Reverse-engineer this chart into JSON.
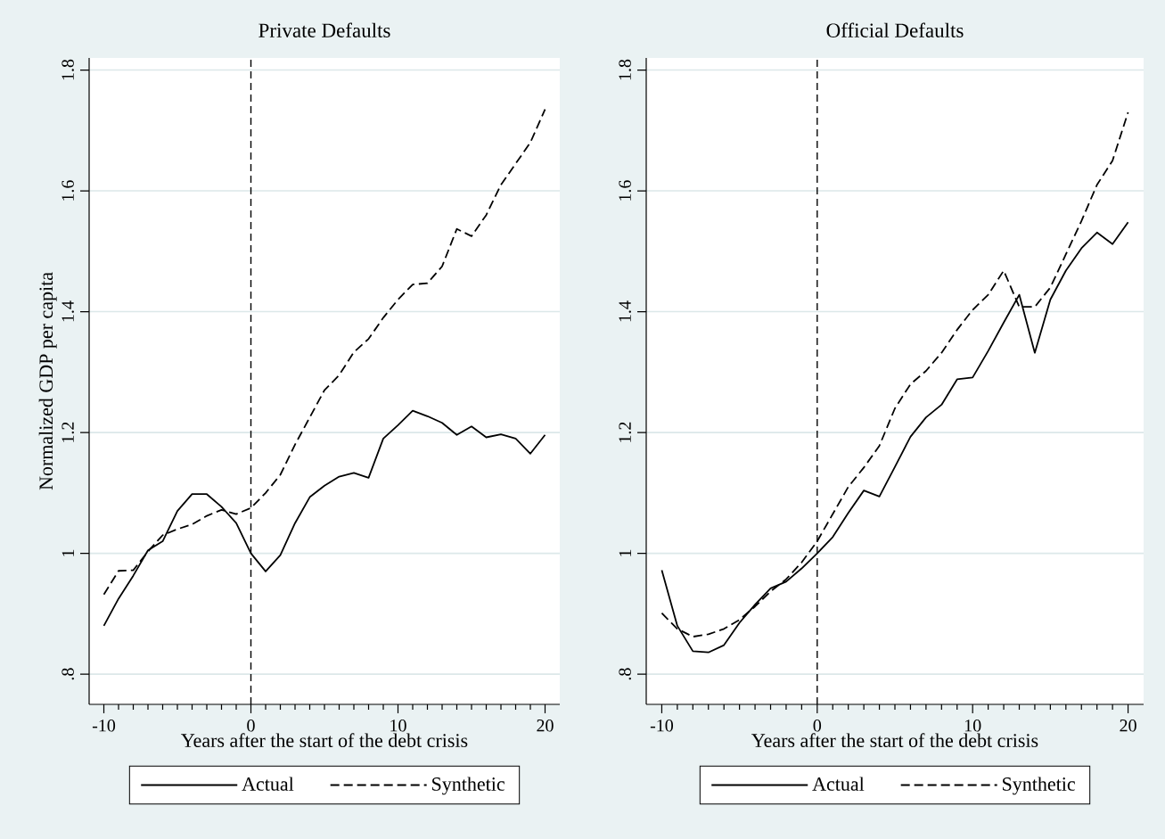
{
  "chart_data": [
    {
      "type": "line",
      "title": "Private Defaults",
      "xlabel": "Years after the start of the debt crisis",
      "ylabel": "Normalized GDP per capita",
      "x": [
        -10,
        -9,
        -8,
        -7,
        -6,
        -5,
        -4,
        -3,
        -2,
        -1,
        0,
        1,
        2,
        3,
        4,
        5,
        6,
        7,
        8,
        9,
        10,
        11,
        12,
        13,
        14,
        15,
        16,
        17,
        18,
        19,
        20
      ],
      "series": [
        {
          "name": "Actual",
          "color": "#000000",
          "line_style": "solid",
          "values": [
            0.88,
            0.925,
            0.963,
            1.005,
            1.02,
            1.07,
            1.098,
            1.098,
            1.077,
            1.05,
            1.0,
            0.97,
            0.997,
            1.05,
            1.093,
            1.112,
            1.127,
            1.133,
            1.125,
            1.19,
            1.212,
            1.236,
            1.227,
            1.216,
            1.196,
            1.21,
            1.192,
            1.197,
            1.19,
            1.165,
            1.196
          ]
        },
        {
          "name": "Synthetic",
          "color": "#000000",
          "line_style": "dashed",
          "values": [
            0.932,
            0.971,
            0.972,
            1.003,
            1.03,
            1.04,
            1.048,
            1.062,
            1.072,
            1.065,
            1.075,
            1.1,
            1.13,
            1.18,
            1.225,
            1.27,
            1.295,
            1.333,
            1.355,
            1.39,
            1.42,
            1.445,
            1.447,
            1.475,
            1.537,
            1.525,
            1.56,
            1.61,
            1.645,
            1.68,
            1.735
          ]
        }
      ],
      "xlim": [
        -11,
        21
      ],
      "ylim": [
        0.75,
        1.82
      ],
      "xticks": [
        -10,
        0,
        10,
        20
      ],
      "yticks": [
        {
          "value": 0.8,
          "label": ".8"
        },
        1,
        1.2,
        1.4,
        1.6,
        1.8
      ],
      "ref_lines": [
        {
          "axis": "x",
          "value": 0,
          "color": "#000000",
          "line_style": "dashed"
        }
      ],
      "grid": "y",
      "legend": "bottom",
      "marker": "none"
    },
    {
      "type": "line",
      "title": "Official Defaults",
      "xlabel": "Years after the start of the debt crisis",
      "x": [
        -10,
        -9,
        -8,
        -7,
        -6,
        -5,
        -4,
        -3,
        -2,
        -1,
        0,
        1,
        2,
        3,
        4,
        5,
        6,
        7,
        8,
        9,
        10,
        11,
        12,
        13,
        14,
        15,
        16,
        17,
        18,
        19,
        20
      ],
      "series": [
        {
          "name": "Actual",
          "color": "#000000",
          "line_style": "solid",
          "values": [
            0.972,
            0.88,
            0.838,
            0.836,
            0.848,
            0.885,
            0.915,
            0.942,
            0.953,
            0.975,
            1.0,
            1.027,
            1.067,
            1.104,
            1.094,
            1.143,
            1.193,
            1.225,
            1.246,
            1.288,
            1.291,
            1.335,
            1.382,
            1.428,
            1.332,
            1.42,
            1.468,
            1.505,
            1.531,
            1.512,
            1.548
          ]
        },
        {
          "name": "Synthetic",
          "color": "#000000",
          "line_style": "dashed",
          "values": [
            0.901,
            0.875,
            0.862,
            0.866,
            0.875,
            0.89,
            0.912,
            0.937,
            0.957,
            0.985,
            1.02,
            1.065,
            1.11,
            1.142,
            1.178,
            1.24,
            1.28,
            1.302,
            1.332,
            1.37,
            1.403,
            1.428,
            1.468,
            1.408,
            1.408,
            1.44,
            1.495,
            1.55,
            1.61,
            1.65,
            1.73
          ]
        }
      ],
      "xlim": [
        -11,
        21
      ],
      "ylim": [
        0.75,
        1.82
      ],
      "xticks": [
        -10,
        0,
        10,
        20
      ],
      "yticks": [
        {
          "value": 0.8,
          "label": ".8"
        },
        1,
        1.2,
        1.4,
        1.6,
        1.8
      ],
      "ref_lines": [
        {
          "axis": "x",
          "value": 0,
          "color": "#000000",
          "line_style": "dashed"
        }
      ],
      "grid": "y",
      "legend": "bottom",
      "marker": "none"
    }
  ]
}
